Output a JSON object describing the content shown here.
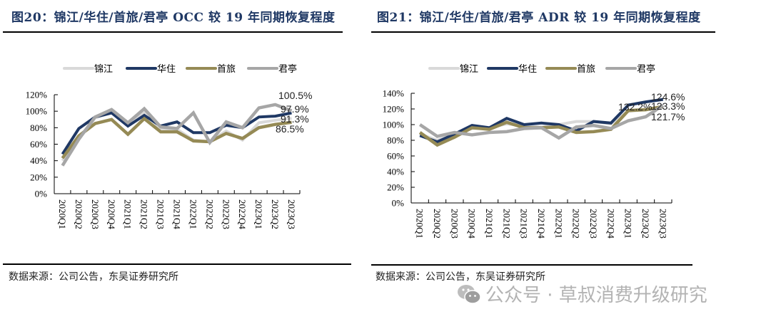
{
  "figures": [
    {
      "title": "图20：锦江/华住/首旅/君亭 OCC 较 19 年同期恢复程度",
      "source": "数据来源：公司公告，东吴证券研究所"
    },
    {
      "title": "图21：锦江/华住/首旅/君亭 ADR 较 19 年同期恢复程度",
      "source": "数据来源：公司公告，东吴证券研究所"
    }
  ],
  "watermark": {
    "icon": "wechat-icon",
    "text": "公众号 · 草叔消费升级研究"
  },
  "colors": {
    "锦江": "#d9d9d9",
    "华住": "#1f3864",
    "首旅": "#958a55",
    "君亭": "#a6a6a6"
  },
  "chart_data": [
    {
      "type": "line",
      "title": "锦江/华住/首旅/君亭 OCC 较 19 年同期恢复程度",
      "xlabel": "",
      "ylabel": "",
      "ylim": [
        0,
        120
      ],
      "yticks": [
        0,
        20,
        40,
        60,
        80,
        100,
        120
      ],
      "ytick_labels": [
        "0%",
        "20%",
        "40%",
        "60%",
        "80%",
        "100%",
        "120%"
      ],
      "grid": false,
      "legend": "top",
      "categories": [
        "2020Q1",
        "2020Q2",
        "2020Q3",
        "2020Q4",
        "2021Q1",
        "2021Q2",
        "2021Q3",
        "2021Q4",
        "2022Q1",
        "2022Q2",
        "2022Q3",
        "2022Q4",
        "2023Q1",
        "2023Q2",
        "2023Q3"
      ],
      "series": [
        {
          "name": "锦江",
          "values": [
            40,
            68,
            92,
            98,
            84,
            98,
            79,
            78,
            65,
            63,
            76,
            65,
            86,
            89,
            91.3
          ]
        },
        {
          "name": "华住",
          "values": [
            48,
            79,
            93,
            98,
            82,
            95,
            82,
            87,
            74,
            74,
            83,
            80,
            93,
            94,
            97.9
          ]
        },
        {
          "name": "首旅",
          "values": [
            43,
            70,
            85,
            90,
            72,
            91,
            75,
            75,
            64,
            63,
            73,
            67,
            80,
            84,
            86.5
          ]
        },
        {
          "name": "君亭",
          "values": [
            34,
            66,
            93,
            102,
            86,
            103,
            81,
            79,
            98,
            62,
            87,
            80,
            104,
            108,
            100.5
          ]
        }
      ],
      "annotations": [
        "100.5%",
        "97.9%",
        "91.3%",
        "86.5%"
      ]
    },
    {
      "type": "line",
      "title": "锦江/华住/首旅/君亭 ADR 较 19 年同期恢复程度",
      "xlabel": "",
      "ylabel": "",
      "ylim": [
        0,
        140
      ],
      "yticks": [
        0,
        20,
        40,
        60,
        80,
        100,
        120,
        140
      ],
      "ytick_labels": [
        "0%",
        "20%",
        "40%",
        "60%",
        "80%",
        "100%",
        "120%",
        "140%"
      ],
      "grid": false,
      "legend": "top",
      "categories": [
        "2020Q1",
        "2020Q2",
        "2020Q3",
        "2020Q4",
        "2021Q1",
        "2021Q2",
        "2021Q3",
        "2021Q4",
        "2022Q1",
        "2022Q2",
        "2022Q3",
        "2022Q4",
        "2023Q1",
        "2023Q2",
        "2023Q3"
      ],
      "series": [
        {
          "name": "锦江",
          "values": [
            88,
            80,
            88,
            95,
            96,
            101,
            98,
            97,
            100,
            104,
            104,
            101,
            117,
            119,
            121.7
          ]
        },
        {
          "name": "华住",
          "values": [
            86,
            78,
            88,
            99,
            96,
            108,
            100,
            102,
            100,
            92,
            104,
            102,
            125,
            129,
            132.2
          ]
        },
        {
          "name": "首旅",
          "values": [
            90,
            74,
            84,
            96,
            94,
            103,
            96,
            96,
            97,
            90,
            91,
            94,
            118,
            119,
            123.3
          ]
        },
        {
          "name": "君亭",
          "values": [
            100,
            85,
            90,
            87,
            90,
            91,
            95,
            96,
            83,
            97,
            99,
            95,
            105,
            110,
            124.6
          ]
        }
      ],
      "annotations": [
        "132.2%",
        "124.6%",
        "123.3%",
        "121.7%"
      ]
    }
  ]
}
